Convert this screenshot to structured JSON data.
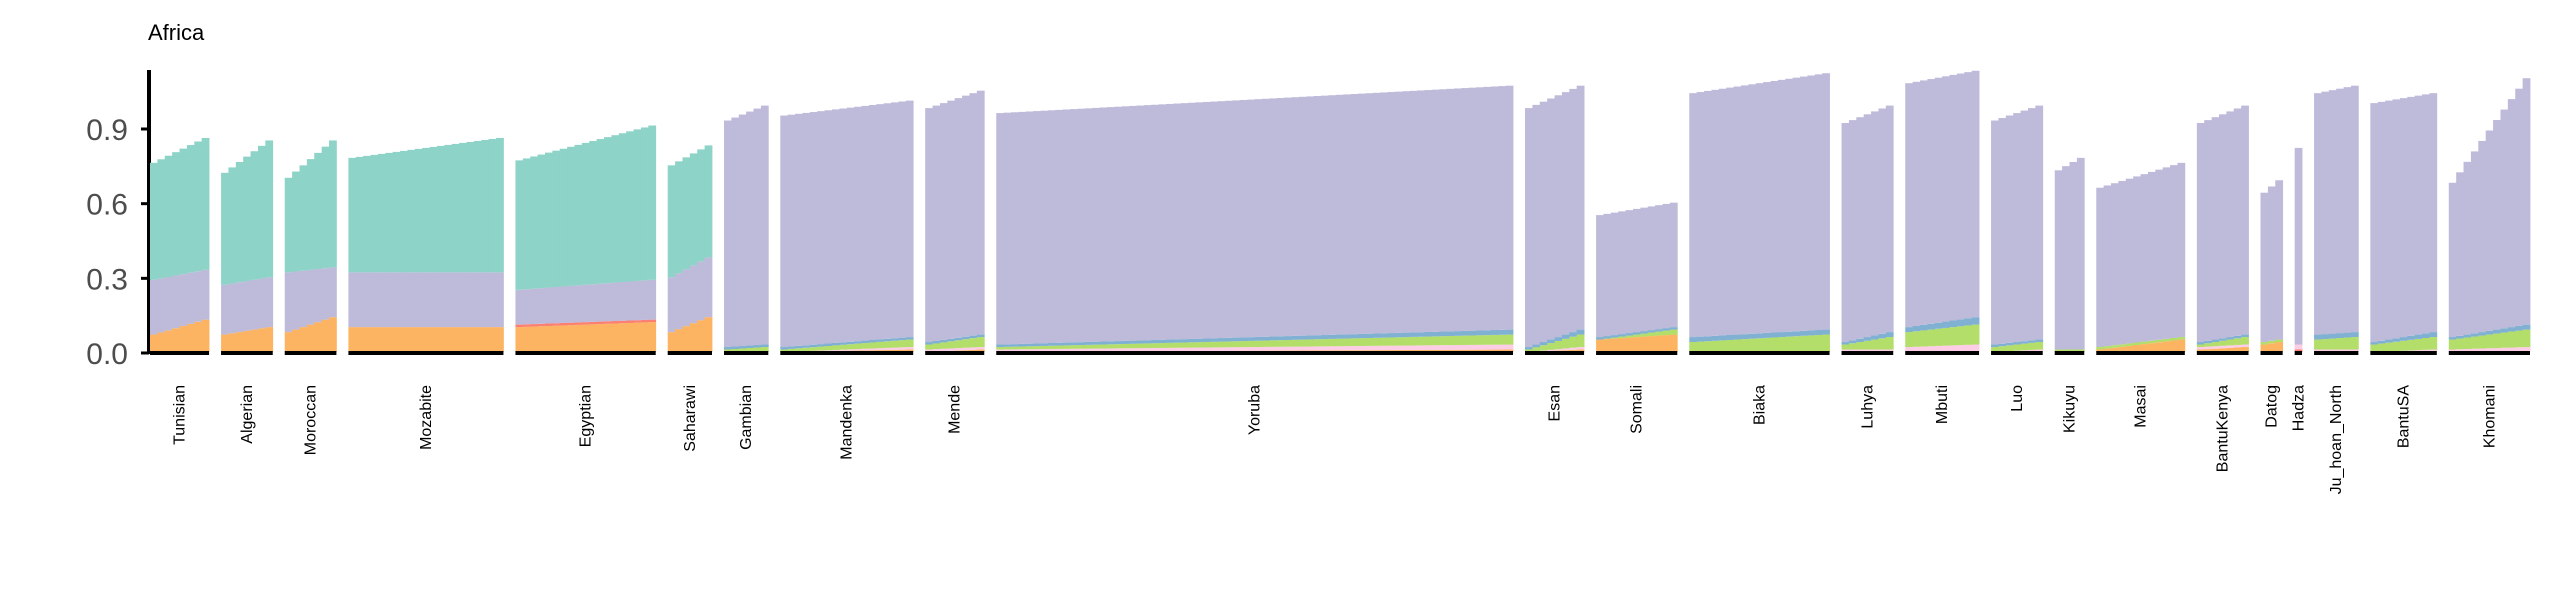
{
  "chart_data": {
    "type": "bar",
    "subtype": "stacked-admixture",
    "title": "Africa",
    "xlabel": "",
    "ylabel": "",
    "ylim": [
      0,
      1.1
    ],
    "yticks": [
      "0.0",
      "0.3",
      "0.6",
      "0.9"
    ],
    "ytick_values": [
      0,
      0.3,
      0.6,
      0.9
    ],
    "grid": false,
    "legend": "none",
    "components": [
      {
        "key": "orange",
        "color": "#fdb462"
      },
      {
        "key": "red",
        "color": "#fb8072"
      },
      {
        "key": "pink",
        "color": "#fccde5"
      },
      {
        "key": "green",
        "color": "#b3de69"
      },
      {
        "key": "blue",
        "color": "#80b1d3"
      },
      {
        "key": "purple",
        "color": "#bebada"
      },
      {
        "key": "teal",
        "color": "#8dd3c7"
      }
    ],
    "groups": [
      {
        "name": "Tunisian",
        "n": 8,
        "total": [
          0.76,
          0.86
        ],
        "orange": [
          0.07,
          0.13
        ],
        "pink": [
          0,
          0
        ],
        "green": [
          0,
          0
        ],
        "blue": [
          0,
          0
        ],
        "purple": [
          0.22,
          0.2
        ],
        "red": [
          0,
          0
        ]
      },
      {
        "name": "Algerian",
        "n": 7,
        "total": [
          0.72,
          0.85
        ],
        "orange": [
          0.07,
          0.1
        ],
        "pink": [
          0,
          0
        ],
        "green": [
          0,
          0
        ],
        "blue": [
          0,
          0
        ],
        "purple": [
          0.2,
          0.2
        ],
        "red": [
          0,
          0
        ]
      },
      {
        "name": "Moroccan",
        "n": 7,
        "total": [
          0.7,
          0.85
        ],
        "orange": [
          0.08,
          0.14
        ],
        "pink": [
          0,
          0
        ],
        "green": [
          0,
          0
        ],
        "blue": [
          0,
          0
        ],
        "purple": [
          0.24,
          0.2
        ],
        "red": [
          0,
          0
        ]
      },
      {
        "name": "Mozabite",
        "n": 21,
        "total": [
          0.78,
          0.86
        ],
        "orange": [
          0.1,
          0.1
        ],
        "pink": [
          0,
          0
        ],
        "green": [
          0,
          0
        ],
        "blue": [
          0,
          0
        ],
        "purple": [
          0.22,
          0.22
        ],
        "red": [
          0,
          0
        ]
      },
      {
        "name": "Egyptian",
        "n": 19,
        "total": [
          0.77,
          0.91
        ],
        "orange": [
          0.1,
          0.12
        ],
        "pink": [
          0,
          0
        ],
        "green": [
          0,
          0
        ],
        "blue": [
          0,
          0
        ],
        "purple": [
          0.14,
          0.16
        ],
        "red": [
          0.01,
          0.01
        ]
      },
      {
        "name": "Saharawi",
        "n": 6,
        "total": [
          0.75,
          0.83
        ],
        "orange": [
          0.08,
          0.14
        ],
        "pink": [
          0,
          0
        ],
        "green": [
          0,
          0
        ],
        "blue": [
          0,
          0
        ],
        "purple": [
          0.22,
          0.24
        ],
        "red": [
          0,
          0
        ]
      },
      {
        "name": "Gambian",
        "n": 6,
        "total": [
          0.93,
          0.99
        ],
        "orange": [
          0,
          0
        ],
        "pink": [
          0,
          0
        ],
        "green": [
          0.01,
          0.02
        ],
        "blue": [
          0.01,
          0.01
        ],
        "purple": [
          0.91,
          0.96
        ],
        "red": [
          0,
          0
        ]
      },
      {
        "name": "Mandenka",
        "n": 18,
        "total": [
          0.95,
          1.01
        ],
        "orange": [
          0,
          0.01
        ],
        "pink": [
          0,
          0.01
        ],
        "green": [
          0.01,
          0.03
        ],
        "blue": [
          0.01,
          0.01
        ],
        "purple": [
          0.93,
          0.95
        ],
        "red": [
          0,
          0
        ]
      },
      {
        "name": "Mende",
        "n": 8,
        "total": [
          0.98,
          1.05
        ],
        "orange": [
          0,
          0.01
        ],
        "pink": [
          0.01,
          0.01
        ],
        "green": [
          0.02,
          0.04
        ],
        "blue": [
          0.01,
          0.01
        ],
        "purple": [
          0.94,
          0.98
        ],
        "red": [
          0,
          0
        ]
      },
      {
        "name": "Yoruba",
        "n": 70,
        "total": [
          0.96,
          1.07
        ],
        "orange": [
          0,
          0.01
        ],
        "pink": [
          0.01,
          0.02
        ],
        "green": [
          0.01,
          0.04
        ],
        "blue": [
          0.01,
          0.02
        ],
        "purple": [
          0.93,
          0.98
        ],
        "red": [
          0,
          0
        ]
      },
      {
        "name": "Esan",
        "n": 8,
        "total": [
          0.98,
          1.07
        ],
        "orange": [
          0,
          0.01
        ],
        "pink": [
          0,
          0.01
        ],
        "green": [
          0.01,
          0.05
        ],
        "blue": [
          0.01,
          0.02
        ],
        "purple": [
          0.96,
          0.98
        ],
        "red": [
          0,
          0
        ]
      },
      {
        "name": "Somali",
        "n": 11,
        "total": [
          0.55,
          0.6
        ],
        "orange": [
          0.05,
          0.07
        ],
        "pink": [
          0,
          0
        ],
        "green": [
          0,
          0.02
        ],
        "blue": [
          0.01,
          0.01
        ],
        "purple": [
          0.49,
          0.5
        ],
        "red": [
          0,
          0
        ]
      },
      {
        "name": "Biaka",
        "n": 19,
        "total": [
          1.04,
          1.12
        ],
        "orange": [
          0,
          0
        ],
        "pink": [
          0,
          0
        ],
        "green": [
          0.04,
          0.07
        ],
        "blue": [
          0.02,
          0.02
        ],
        "purple": [
          0.98,
          1.03
        ],
        "red": [
          0,
          0
        ]
      },
      {
        "name": "Luhya",
        "n": 7,
        "total": [
          0.92,
          0.99
        ],
        "orange": [
          0,
          0
        ],
        "pink": [
          0.01,
          0.01
        ],
        "green": [
          0.02,
          0.05
        ],
        "blue": [
          0.01,
          0.02
        ],
        "purple": [
          0.88,
          0.91
        ],
        "red": [
          0,
          0
        ]
      },
      {
        "name": "Mbuti",
        "n": 10,
        "total": [
          1.08,
          1.13
        ],
        "orange": [
          0,
          0
        ],
        "pink": [
          0.02,
          0.03
        ],
        "green": [
          0.06,
          0.08
        ],
        "blue": [
          0.02,
          0.03
        ],
        "purple": [
          0.98,
          0.99
        ],
        "red": [
          0,
          0
        ]
      },
      {
        "name": "Luo",
        "n": 7,
        "total": [
          0.93,
          0.99
        ],
        "orange": [
          0,
          0
        ],
        "pink": [
          0,
          0.01
        ],
        "green": [
          0.02,
          0.03
        ],
        "blue": [
          0.01,
          0.01
        ],
        "purple": [
          0.9,
          0.94
        ],
        "red": [
          0,
          0
        ]
      },
      {
        "name": "Kikuyu",
        "n": 4,
        "total": [
          0.73,
          0.78
        ],
        "orange": [
          0,
          0
        ],
        "pink": [
          0,
          0
        ],
        "green": [
          0.01,
          0.01
        ],
        "blue": [
          0,
          0
        ],
        "purple": [
          0.72,
          0.77
        ],
        "red": [
          0,
          0
        ]
      },
      {
        "name": "Masai",
        "n": 12,
        "total": [
          0.66,
          0.76
        ],
        "orange": [
          0.01,
          0.05
        ],
        "pink": [
          0,
          0
        ],
        "green": [
          0.01,
          0.01
        ],
        "blue": [
          0,
          0
        ],
        "purple": [
          0.64,
          0.7
        ],
        "red": [
          0,
          0
        ]
      },
      {
        "name": "BantuKenya",
        "n": 7,
        "total": [
          0.92,
          0.99
        ],
        "orange": [
          0.01,
          0.02
        ],
        "pink": [
          0.01,
          0.01
        ],
        "green": [
          0.01,
          0.03
        ],
        "blue": [
          0.01,
          0.01
        ],
        "purple": [
          0.88,
          0.92
        ],
        "red": [
          0,
          0
        ]
      },
      {
        "name": "Datog",
        "n": 3,
        "total": [
          0.64,
          0.69
        ],
        "orange": [
          0.03,
          0.04
        ],
        "pink": [
          0,
          0
        ],
        "green": [
          0.01,
          0.01
        ],
        "blue": [
          0,
          0
        ],
        "purple": [
          0.6,
          0.64
        ],
        "red": [
          0,
          0
        ]
      },
      {
        "name": "Hadza",
        "n": 1,
        "total": [
          0.81,
          0.81
        ],
        "orange": [
          0,
          0
        ],
        "pink": [
          0.02,
          0.02
        ],
        "green": [
          0,
          0
        ],
        "blue": [
          0,
          0
        ],
        "purple": [
          0.79,
          0.79
        ],
        "red": [
          0.01,
          0.01
        ]
      },
      {
        "name": "Ju_hoan_North",
        "n": 6,
        "total": [
          1.04,
          1.07
        ],
        "orange": [
          0,
          0
        ],
        "pink": [
          0.01,
          0.01
        ],
        "green": [
          0.04,
          0.05
        ],
        "blue": [
          0.02,
          0.02
        ],
        "purple": [
          0.97,
          0.99
        ],
        "red": [
          0,
          0
        ]
      },
      {
        "name": "BantuSA",
        "n": 9,
        "total": [
          1.0,
          1.04
        ],
        "orange": [
          0,
          0
        ],
        "pink": [
          0,
          0.01
        ],
        "green": [
          0.03,
          0.05
        ],
        "blue": [
          0.01,
          0.02
        ],
        "purple": [
          0.96,
          0.96
        ],
        "red": [
          0,
          0
        ]
      },
      {
        "name": "Khomani",
        "n": 11,
        "total": [
          0.68,
          1.1
        ],
        "orange": [
          0,
          0
        ],
        "pink": [
          0.01,
          0.02
        ],
        "green": [
          0.04,
          0.07
        ],
        "blue": [
          0.01,
          0.02
        ],
        "purple": [
          0.62,
          0.99
        ],
        "red": [
          0,
          0
        ]
      }
    ]
  }
}
